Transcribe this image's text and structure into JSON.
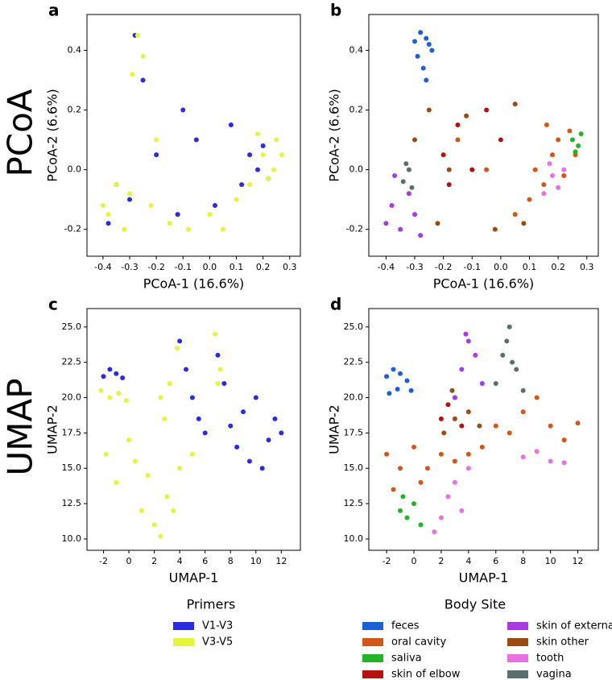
{
  "row_labels": [
    "PCoA",
    "UMAP"
  ],
  "charts": [
    {
      "type": "scatter",
      "panel": "a",
      "xlabel": "PCoA-1 (16.6%)",
      "ylabel": "PCoA-2 (6.6%)",
      "xlim": [
        -0.46,
        0.34
      ],
      "ylim": [
        -0.29,
        0.52
      ],
      "xticks": [
        -0.4,
        -0.3,
        -0.2,
        -0.1,
        {
          "value": 0,
          "label": "0.0"
        },
        0.1,
        0.2,
        0.3
      ],
      "yticks": [
        -0.2,
        {
          "value": 0,
          "label": "0.0"
        },
        0.2,
        0.4
      ],
      "series": [
        {
          "name": "V1-V3",
          "color": "#2b2be0",
          "x": [
            -0.38,
            -0.3,
            -0.25,
            -0.2,
            -0.12,
            -0.05,
            0.02,
            0.08,
            0.12,
            0.15,
            0.18,
            0.2,
            0.22,
            -0.28,
            -0.35,
            -0.1
          ],
          "y": [
            -0.18,
            -0.1,
            0.3,
            0.05,
            -0.15,
            0.1,
            -0.12,
            0.15,
            -0.05,
            0.05,
            0.0,
            0.08,
            -0.03,
            0.45,
            -0.05,
            0.2
          ]
        },
        {
          "name": "V3-V5",
          "color": "#e5f53a",
          "x": [
            -0.27,
            -0.25,
            -0.29,
            -0.38,
            -0.35,
            -0.32,
            -0.3,
            -0.22,
            -0.15,
            -0.08,
            0.0,
            0.05,
            0.1,
            0.15,
            0.2,
            0.22,
            0.25,
            0.27,
            0.18,
            0.24,
            -0.4,
            -0.2
          ],
          "y": [
            0.45,
            0.38,
            0.32,
            -0.15,
            -0.05,
            -0.2,
            -0.08,
            -0.12,
            -0.18,
            -0.2,
            -0.15,
            -0.2,
            -0.1,
            -0.05,
            0.05,
            -0.03,
            0.1,
            0.05,
            0.12,
            0.0,
            -0.12,
            0.1
          ]
        }
      ]
    },
    {
      "type": "scatter",
      "panel": "b",
      "xlabel": "PCoA-1 (16.6%)",
      "ylabel": "PCoA-2 (6.6%)",
      "xlim": [
        -0.46,
        0.34
      ],
      "ylim": [
        -0.29,
        0.52
      ],
      "xticks": [
        -0.4,
        -0.3,
        -0.2,
        -0.1,
        {
          "value": 0,
          "label": "0.0"
        },
        0.1,
        0.2,
        0.3
      ],
      "yticks": [
        -0.2,
        {
          "value": 0,
          "label": "0.0"
        },
        0.2,
        0.4
      ],
      "series": [
        {
          "name": "feces",
          "color": "#1f5fd6",
          "x": [
            -0.28,
            -0.26,
            -0.24,
            -0.29,
            -0.27,
            -0.25,
            -0.3,
            -0.26
          ],
          "y": [
            0.46,
            0.44,
            0.4,
            0.38,
            0.34,
            0.42,
            0.43,
            0.3
          ]
        },
        {
          "name": "oral cavity",
          "color": "#d2581a",
          "x": [
            0.1,
            0.15,
            0.18,
            0.2,
            0.22,
            0.24,
            0.16,
            0.05,
            -0.05,
            -0.15,
            0.12,
            0.26
          ],
          "y": [
            -0.1,
            -0.05,
            0.05,
            0.1,
            -0.02,
            0.13,
            0.15,
            -0.15,
            0.0,
            0.1,
            0.0,
            0.05
          ]
        },
        {
          "name": "saliva",
          "color": "#22b52a",
          "x": [
            0.25,
            0.27,
            0.28,
            0.26
          ],
          "y": [
            0.1,
            0.08,
            0.12,
            0.06
          ]
        },
        {
          "name": "skin of elbow",
          "color": "#b5120f",
          "x": [
            -0.2,
            -0.15,
            -0.1,
            -0.05,
            -0.18,
            0.0
          ],
          "y": [
            0.05,
            0.15,
            0.0,
            0.2,
            -0.05,
            0.1
          ]
        },
        {
          "name": "skin of external ear",
          "color": "#a53be0",
          "x": [
            -0.4,
            -0.38,
            -0.35,
            -0.32,
            -0.3,
            -0.37,
            -0.28
          ],
          "y": [
            -0.18,
            -0.12,
            -0.2,
            -0.08,
            -0.15,
            -0.02,
            -0.22
          ]
        },
        {
          "name": "skin other",
          "color": "#9b4a14",
          "x": [
            -0.3,
            -0.22,
            -0.12,
            -0.02,
            0.05,
            0.08,
            -0.25,
            -0.18
          ],
          "y": [
            0.1,
            -0.18,
            0.18,
            -0.2,
            0.22,
            -0.18,
            0.2,
            0.0
          ]
        },
        {
          "name": "tooth",
          "color": "#ea72e0",
          "x": [
            0.15,
            0.18,
            0.2,
            0.22,
            0.17
          ],
          "y": [
            -0.08,
            -0.02,
            -0.06,
            0.0,
            0.02
          ]
        },
        {
          "name": "vagina",
          "color": "#5b6e6e",
          "x": [
            -0.34,
            -0.32,
            -0.33,
            -0.31
          ],
          "y": [
            -0.04,
            0.0,
            0.02,
            -0.06
          ]
        }
      ]
    },
    {
      "type": "scatter",
      "panel": "c",
      "xlabel": "UMAP-1",
      "ylabel": "UMAP-2",
      "legend_title": "Primers",
      "xlim": [
        -3.3,
        13.5
      ],
      "ylim": [
        9.2,
        26.3
      ],
      "xticks": [
        -2,
        0,
        2,
        4,
        6,
        8,
        10,
        12
      ],
      "yticks": [
        {
          "value": 10,
          "label": "10.0"
        },
        12.5,
        {
          "value": 15,
          "label": "15.0"
        },
        17.5,
        {
          "value": 20,
          "label": "20.0"
        },
        22.5,
        {
          "value": 25,
          "label": "25.0"
        }
      ],
      "series": [
        {
          "name": "V1-V3",
          "color": "#2b2be0",
          "x": [
            -2,
            -1.5,
            -1,
            -0.5,
            4,
            4.5,
            5,
            5.5,
            6,
            7,
            7.5,
            8,
            9,
            10,
            11,
            12,
            9.5,
            10.5,
            8.5,
            11.5
          ],
          "y": [
            21.5,
            22,
            21.7,
            21.4,
            24,
            22,
            20,
            18.5,
            17.5,
            23,
            21,
            18,
            19,
            20,
            17,
            17.5,
            15.5,
            15,
            16.5,
            18.5
          ]
        },
        {
          "name": "V3-V5",
          "color": "#e5f53a",
          "x": [
            -2.2,
            -1.5,
            -0.8,
            -0.2,
            -1.8,
            -1,
            0,
            1,
            2,
            3,
            4,
            5,
            0.5,
            2.5,
            1.5,
            3.5,
            2.8,
            3.2,
            2.5,
            3.8,
            6.8,
            7.2,
            7
          ],
          "y": [
            20.5,
            20,
            20.3,
            19.8,
            16,
            14,
            17,
            12,
            11,
            13,
            15,
            16,
            15.5,
            10.2,
            14.5,
            12,
            18.5,
            21,
            20,
            23.5,
            24.5,
            22,
            21
          ]
        }
      ]
    },
    {
      "type": "scatter",
      "panel": "d",
      "xlabel": "UMAP-1",
      "ylabel": "UMAP-2",
      "legend_title": "Body Site",
      "xlim": [
        -3.3,
        13.5
      ],
      "ylim": [
        9.2,
        26.3
      ],
      "xticks": [
        -2,
        0,
        2,
        4,
        6,
        8,
        10,
        12
      ],
      "yticks": [
        {
          "value": 10,
          "label": "10.0"
        },
        12.5,
        {
          "value": 15,
          "label": "15.0"
        },
        17.5,
        {
          "value": 20,
          "label": "20.0"
        },
        22.5,
        {
          "value": 25,
          "label": "25.0"
        }
      ],
      "series": [
        {
          "name": "feces",
          "color": "#1f5fd6",
          "x": [
            -2,
            -1.5,
            -1,
            -0.5,
            -0.2,
            -1.8,
            -1.2
          ],
          "y": [
            21.5,
            22,
            21.7,
            21.2,
            20.5,
            20.3,
            20.6
          ]
        },
        {
          "name": "oral cavity",
          "color": "#d2581a",
          "x": [
            -2,
            -1,
            0,
            1,
            2,
            3,
            4,
            5,
            6,
            7,
            8,
            9,
            10,
            11,
            12,
            -1.5,
            0.5
          ],
          "y": [
            16,
            15,
            16.5,
            15,
            16,
            15.5,
            16,
            16.5,
            18,
            17.5,
            19,
            20,
            18,
            17,
            18.2,
            13.5,
            14
          ]
        },
        {
          "name": "saliva",
          "color": "#22b52a",
          "x": [
            -1,
            -0.5,
            0,
            0.5,
            -0.8
          ],
          "y": [
            12,
            11.5,
            12.5,
            11,
            13
          ]
        },
        {
          "name": "skin of elbow",
          "color": "#b5120f",
          "x": [
            2,
            2.5,
            3,
            3.5
          ],
          "y": [
            18.5,
            19.5,
            20,
            18
          ]
        },
        {
          "name": "skin of external ear",
          "color": "#a53be0",
          "x": [
            3,
            3.5,
            4,
            4.5,
            5,
            3.8
          ],
          "y": [
            20,
            22,
            24,
            23,
            21,
            24.5
          ]
        },
        {
          "name": "skin other",
          "color": "#9b4a14",
          "x": [
            2.2,
            3,
            4,
            4.8,
            2.8
          ],
          "y": [
            17.5,
            18.5,
            19,
            18,
            20.5
          ]
        },
        {
          "name": "tooth",
          "color": "#ea72e0",
          "x": [
            1.5,
            2,
            2.5,
            3,
            3.5,
            4,
            8,
            9,
            10,
            11
          ],
          "y": [
            10.5,
            11.5,
            13,
            14,
            12,
            15,
            15.8,
            16.2,
            15.5,
            15.4
          ]
        },
        {
          "name": "vagina",
          "color": "#5b6e6e",
          "x": [
            6,
            6.5,
            7,
            7.5,
            8,
            6.8,
            7.2
          ],
          "y": [
            21,
            23,
            25,
            22,
            20.5,
            24,
            22.5
          ]
        }
      ]
    }
  ]
}
